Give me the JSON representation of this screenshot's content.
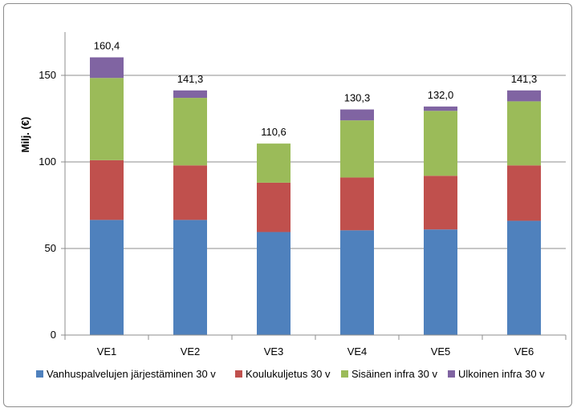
{
  "chart_data": {
    "type": "bar",
    "stacked": true,
    "categories": [
      "VE1",
      "VE2",
      "VE3",
      "VE4",
      "VE5",
      "VE6"
    ],
    "series": [
      {
        "name": "Vanhuspalvelujen järjestäminen 30 v",
        "color": "#4f81bd",
        "values": [
          66.5,
          66.5,
          59.5,
          60.5,
          61.0,
          66.0
        ]
      },
      {
        "name": "Koulukuljetus 30 v",
        "color": "#c0504d",
        "values": [
          34.5,
          31.5,
          28.5,
          30.5,
          31.0,
          32.0
        ]
      },
      {
        "name": "Sisäinen infra 30 v",
        "color": "#9bbb59",
        "values": [
          47.5,
          39.0,
          22.6,
          33.0,
          37.5,
          37.0
        ]
      },
      {
        "name": "Ulkoinen infra 30 v",
        "color": "#8064a2",
        "values": [
          11.9,
          4.3,
          0.0,
          6.3,
          2.5,
          6.3
        ]
      }
    ],
    "totals": [
      "160,4",
      "141,3",
      "110,6",
      "130,3",
      "132,0",
      "141,3"
    ],
    "title": "",
    "xlabel": "",
    "ylabel": "Milj. (€)",
    "ylim": [
      0,
      175
    ],
    "yticks": [
      0,
      50,
      100,
      150
    ],
    "grid": true,
    "legend_position": "bottom"
  }
}
